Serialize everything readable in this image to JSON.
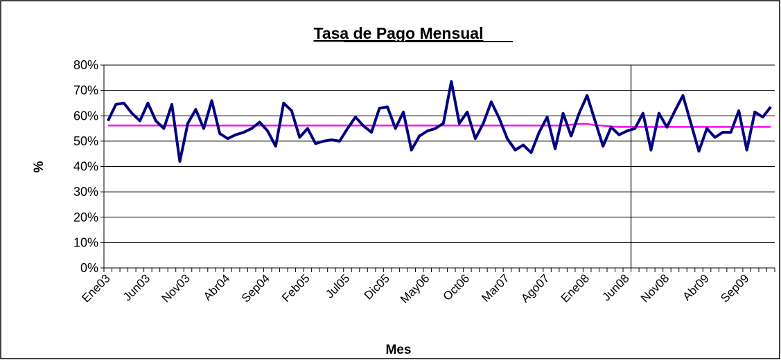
{
  "chart_data": {
    "type": "line",
    "title": "Tasa de Pago Mensual",
    "x_label": "Mes",
    "y_label": "%",
    "categories": [
      "Ene03",
      null,
      null,
      null,
      null,
      "Jun03",
      null,
      null,
      null,
      null,
      "Nov03",
      null,
      null,
      null,
      null,
      "Abr04",
      null,
      null,
      null,
      null,
      "Sep04",
      null,
      null,
      null,
      null,
      "Feb05",
      null,
      null,
      null,
      null,
      "Jul05",
      null,
      null,
      null,
      null,
      "Dic05",
      null,
      null,
      null,
      null,
      "May06",
      null,
      null,
      null,
      null,
      "Oct06",
      null,
      null,
      null,
      null,
      "Mar07",
      null,
      null,
      null,
      null,
      "Ago07",
      null,
      null,
      null,
      null,
      "Ene08",
      null,
      null,
      null,
      null,
      "Jun08",
      null,
      null,
      null,
      null,
      "Nov08",
      null,
      null,
      null,
      null,
      "Abr09",
      null,
      null,
      null,
      null,
      "Sep09",
      null,
      null,
      null
    ],
    "series": [
      {
        "color": "#000080",
        "values": [
          58,
          64.5,
          65,
          61,
          58,
          65,
          58,
          55,
          64.5,
          42,
          57,
          62.5,
          55,
          66,
          53,
          51,
          52.5,
          53.5,
          55,
          57.5,
          54,
          48,
          65,
          62,
          51.5,
          55,
          49,
          50,
          50.5,
          50,
          55,
          59.5,
          56,
          53.5,
          63,
          63.5,
          55,
          61.5,
          46.5,
          52,
          54,
          55,
          57,
          73.5,
          57,
          61.5,
          51,
          57,
          65.5,
          59,
          51,
          46.5,
          48.5,
          45.5,
          53.5,
          59.5,
          47,
          61,
          52,
          61,
          68,
          58,
          48,
          55.5,
          52.5,
          54,
          55,
          61,
          46.5,
          61,
          55.5,
          62,
          68,
          57,
          46,
          55,
          51.5,
          53.5,
          53.5,
          62,
          46.5,
          61.5,
          59.5,
          63.5
        ]
      },
      {
        "color": "#ff00ff",
        "values": [
          56.2,
          56.2,
          56.2,
          56.2,
          56.2,
          56.2,
          56.2,
          56.2,
          56.2,
          56.2,
          56.2,
          56.2,
          56.2,
          56.2,
          56.2,
          56.2,
          56.2,
          56.2,
          56.2,
          56.2,
          56.2,
          56.2,
          56.2,
          56.2,
          56.2,
          56.2,
          56.2,
          56.2,
          56.2,
          56.2,
          56.2,
          56.2,
          56.2,
          56.2,
          56.2,
          56.2,
          56.2,
          56.2,
          56.2,
          56.2,
          56.2,
          56.2,
          56.2,
          56.2,
          56.2,
          56.2,
          56.2,
          56.2,
          56.2,
          56.2,
          56.2,
          56.2,
          56.2,
          56.2,
          56.2,
          56.2,
          56.2,
          56.2,
          56.5,
          56.8,
          56.8,
          56.3,
          56.1,
          55.8,
          55.6,
          55.6,
          55.6,
          55.6,
          55.6,
          55.6,
          55.6,
          55.6,
          55.6,
          55.6,
          55.6,
          55.6,
          55.6,
          55.6,
          55.6,
          55.6,
          55.6,
          55.6,
          55.6,
          55.6
        ]
      }
    ],
    "ylim": [
      0,
      80
    ],
    "yticks": [
      {
        "value": 0,
        "label": "0%"
      },
      {
        "value": 10,
        "label": "10%"
      },
      {
        "value": 20,
        "label": "20%"
      },
      {
        "value": 30,
        "label": "30%"
      },
      {
        "value": 40,
        "label": "40%"
      },
      {
        "value": 50,
        "label": "50%"
      },
      {
        "value": 60,
        "label": "60%"
      },
      {
        "value": 70,
        "label": "70%"
      },
      {
        "value": 80,
        "label": "80%"
      }
    ],
    "grid": true,
    "vline_after": "Jun08"
  }
}
